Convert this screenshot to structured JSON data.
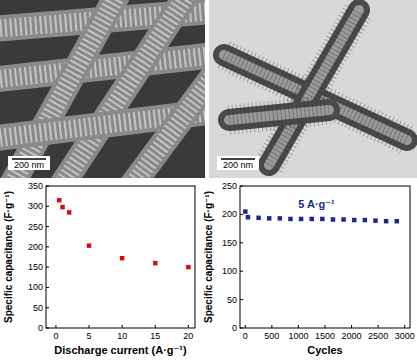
{
  "images": [
    {
      "type": "sem",
      "scale_bar": "200 nm"
    },
    {
      "type": "tem",
      "scale_bar": "200 nm"
    }
  ],
  "chart_data": [
    {
      "type": "scatter",
      "x_label": "Discharge current (A·g⁻¹)",
      "y_label": "Specific capacitance (F·g⁻¹)",
      "x": [
        0.5,
        1,
        2,
        5,
        10,
        15,
        20
      ],
      "values": [
        315,
        298,
        285,
        203,
        172,
        160,
        150
      ],
      "color": "#d01010",
      "marker": "square",
      "xlim": [
        -1.5,
        21
      ],
      "xticks": [
        0,
        5,
        10,
        15,
        20
      ],
      "ylim": [
        0,
        350
      ],
      "yticks": [
        0,
        50,
        100,
        150,
        200,
        250,
        300,
        350
      ],
      "grid": false
    },
    {
      "type": "scatter",
      "x_label": "Cycles",
      "y_label": "Specific capacitance (F·g⁻¹)",
      "annotation": "5 A·g⁻¹",
      "x": [
        0,
        50,
        250,
        450,
        650,
        850,
        1050,
        1250,
        1450,
        1650,
        1850,
        2050,
        2250,
        2450,
        2650,
        2850
      ],
      "values": [
        205,
        195,
        194,
        193,
        193,
        192,
        192,
        192,
        192,
        191,
        191,
        190,
        190,
        189,
        188,
        188
      ],
      "color": "#1a2a8c",
      "marker": "square",
      "xlim": [
        -100,
        3100
      ],
      "xticks": [
        0,
        500,
        1000,
        1500,
        2000,
        2500,
        3000
      ],
      "ylim": [
        0,
        250
      ],
      "yticks": [
        0,
        50,
        100,
        150,
        200,
        250
      ],
      "grid": false
    }
  ]
}
